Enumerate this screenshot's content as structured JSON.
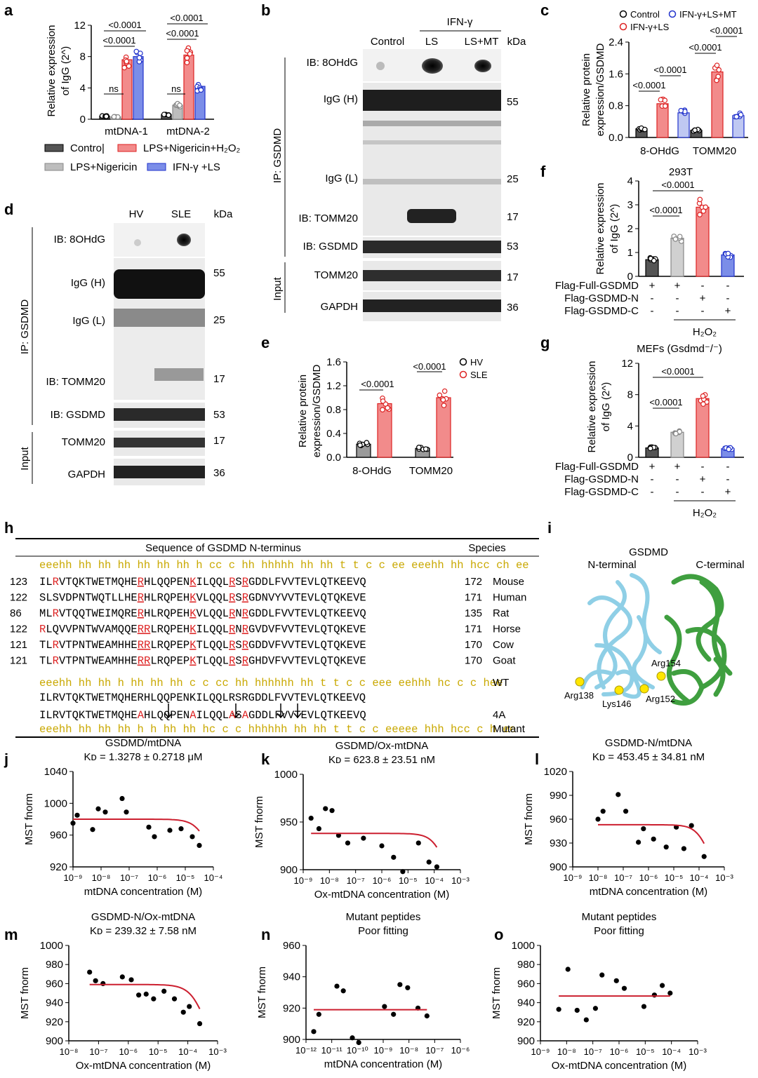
{
  "panels": {
    "a": {
      "letter": "a",
      "ylabel1": "Relative expression",
      "ylabel2": "of IgG (2^)",
      "groups": [
        "mtDNA-1",
        "mtDNA-2"
      ],
      "yticks": [
        "0",
        "4",
        "8",
        "12"
      ],
      "sig": [
        "ns",
        "<0.0001",
        "<0.0001",
        "ns",
        "<0.0001",
        "<0.0001"
      ],
      "legend": [
        "Contro|",
        "LPS+Nigericin",
        "LPS+Nigericin+H₂O₂",
        "IFN-γ +LS"
      ]
    },
    "b": {
      "letter": "b",
      "treat": "IFN-γ",
      "cols": [
        "Control",
        "LS",
        "LS+MT",
        "kDa"
      ],
      "rows": [
        "IB: 8OHdG",
        "IgG (H)",
        "IgG (L)",
        "IB: TOMM20",
        "IB: GSDMD",
        "TOMM20",
        "GAPDH"
      ],
      "kda": [
        "55",
        "25",
        "17",
        "53",
        "17",
        "36"
      ],
      "side1": "IP: GSDMD",
      "side2": "Input"
    },
    "c": {
      "letter": "c",
      "ylabel1": "Relative protein",
      "ylabel2": "expression/GSDMD",
      "groups": [
        "8-OHdG",
        "TOMM20"
      ],
      "yticks": [
        "0.0",
        "0.8",
        "1.6",
        "2.4"
      ],
      "sig": [
        "<0.0001",
        "<0.0001",
        "<0.0001",
        "<0.0001"
      ],
      "legend": [
        "Control",
        "IFN-γ+LS",
        "IFN-γ+LS+MT"
      ]
    },
    "d": {
      "letter": "d",
      "cols": [
        "HV",
        "SLE",
        "kDa"
      ],
      "rows": [
        "IB: 8OHdG",
        "IgG (H)",
        "IgG (L)",
        "IB: TOMM20",
        "IB: GSDMD",
        "TOMM20",
        "GAPDH"
      ],
      "kda": [
        "55",
        "25",
        "17",
        "53",
        "17",
        "36"
      ],
      "side1": "IP: GSDMD",
      "side2": "Input"
    },
    "e": {
      "letter": "e",
      "ylabel1": "Relative protein",
      "ylabel2": "expression/GSDMD",
      "groups": [
        "8-OHdG",
        "TOMM20"
      ],
      "yticks": [
        "0.0",
        "0.4",
        "0.8",
        "1.2",
        "1.6"
      ],
      "sig": [
        "<0.0001",
        "<0.0001"
      ],
      "legend": [
        "HV",
        "SLE"
      ]
    },
    "f": {
      "letter": "f",
      "title": "293T",
      "ylabel1": "Relative expression",
      "ylabel2": "of IgG (2^)",
      "yticks": [
        "0",
        "1",
        "2",
        "3",
        "4"
      ],
      "sig": [
        "<0.0001",
        "<0.0001"
      ],
      "rowlabels": [
        "Flag-Full-GSDMD",
        "Flag-GSDMD-N",
        "Flag-GSDMD-C"
      ],
      "signs": [
        [
          "+",
          "+",
          "-",
          "-"
        ],
        [
          "-",
          "-",
          "+",
          "-"
        ],
        [
          "-",
          "-",
          "-",
          "+"
        ]
      ],
      "h2o2": "H₂O₂"
    },
    "g": {
      "letter": "g",
      "title": "MEFs (Gsdmd⁻/⁻)",
      "ylabel1": "Relative expression",
      "ylabel2": "of IgG (2^)",
      "yticks": [
        "0",
        "4",
        "8",
        "12"
      ],
      "sig": [
        "<0.0001",
        "<0.0001"
      ],
      "rowlabels": [
        "Flag-Full-GSDMD",
        "Flag-GSDMD-N",
        "Flag-GSDMD-C"
      ],
      "signs": [
        [
          "+",
          "+",
          "-",
          "-"
        ],
        [
          "-",
          "-",
          "+",
          "-"
        ],
        [
          "-",
          "-",
          "-",
          "+"
        ]
      ],
      "h2o2": "H₂O₂"
    },
    "h": {
      "letter": "h",
      "header": "Sequence of GSDMD N-terminus",
      "species_header": "Species",
      "ss_top": "eeehh hh hh hh hh hh hh h cc c hh hhhhh hh hh  t t c c ee eeehh hh hcc ch ee",
      "rows": [
        {
          "start": "123",
          "seq": "ILRVTQKTWETMQHERHLQQPENKILQQLRSRGDDLFVVTEVLQTKEEVQ",
          "end": "172",
          "sp": "Mouse"
        },
        {
          "start": "122",
          "seq": "SLSVDPNTWQTLLHERHLRQPEHKVLQQLRSRGDNVYVVTEVLQTQKEVE",
          "end": "171",
          "sp": "Human"
        },
        {
          "start": "86",
          "seq": "MLRVTQQTWEIMQRERHLRQPEHKVLQQLRNRGDDLFVVTEVLQTKEEVQ",
          "end": "135",
          "sp": "Rat"
        },
        {
          "start": "122",
          "seq": "RLQVVPNTWVAMQQERRLRQPEHKILQQLRNRGVDVFVVTEVLQTQKEVE",
          "end": "171",
          "sp": "Horse"
        },
        {
          "start": "121",
          "seq": "TLRVTPNTWEAMHHERRLRQPEPKTLQQLRSRGDDVFVVTEVLQTQKEVE",
          "end": "170",
          "sp": "Cow"
        },
        {
          "start": "121",
          "seq": "TLRVTPNTWEAMHHERRLRQPEPKTLQQLRSRGHDVFVVTEVLQTQKEVE",
          "end": "170",
          "sp": "Goat"
        }
      ],
      "ss_wt": "eeehh hh hh h hh hh hh c c cc hh hhhhhh hh t t c c eee eehhh hc c c hee",
      "wt_label": "WT",
      "wt_seq": "ILRVTQKTWETMQHERHLQQPENKILQQLRSRGDDLFVVTEVLQTKEEVQ",
      "mut_seq": "ILRVTQKTWETMQHEAHLQQPENAILQQLASAGDDLFVVTEVLQTKEEVQ",
      "mut_label": "4A",
      "ss_mut": "eeehh hh hh hh h h hh hh hc c c hhhhhh hh hh t t c c eeeee hhh hcc c h ee",
      "mut_label2": "Mutant"
    },
    "i": {
      "letter": "i",
      "title": "GSDMD",
      "nterm": "N-terminal",
      "cterm": "C-terminal",
      "residues": [
        "Arg154",
        "Arg138",
        "Lys146",
        "Arg152"
      ]
    }
  },
  "chart_data": [
    {
      "panel": "j",
      "type": "scatter",
      "title": "GSDMD/mtDNA",
      "subtitle": "Kᴅ = 1.3278 ± 0.2718 μM",
      "xlabel": "mtDNA concentration (M)",
      "ylabel": "MST fnorm",
      "ylim": [
        920,
        1040
      ],
      "yticks": [
        920,
        960,
        1000,
        1040
      ],
      "xlim": [
        -9,
        -4
      ],
      "xticks": [
        "10⁻⁹",
        "10⁻⁸",
        "10⁻⁷",
        "10⁻⁶",
        "10⁻⁵",
        "10⁻⁴"
      ],
      "points": [
        [
          -9.0,
          975
        ],
        [
          -8.85,
          985
        ],
        [
          -8.3,
          967
        ],
        [
          -8.1,
          993
        ],
        [
          -7.85,
          989
        ],
        [
          -7.25,
          1006
        ],
        [
          -7.1,
          989
        ],
        [
          -6.3,
          970
        ],
        [
          -6.1,
          958
        ],
        [
          -5.55,
          966
        ],
        [
          -5.15,
          968
        ],
        [
          -4.75,
          958
        ],
        [
          -4.5,
          947
        ]
      ],
      "fit": {
        "top": 980,
        "bottom": 900,
        "logk": -4.1
      }
    },
    {
      "panel": "k",
      "type": "scatter",
      "title": "GSDMD/Ox-mtDNA",
      "subtitle": "Kᴅ = 623.8 ± 23.51 nM",
      "xlabel": "Ox-mtDNA concentration (M)",
      "ylabel": "MST fnorm",
      "ylim": [
        900,
        1000
      ],
      "yticks": [
        900,
        950,
        1000
      ],
      "xlim": [
        -9,
        -3
      ],
      "xticks": [
        "10⁻⁹",
        "10⁻⁸",
        "10⁻⁷",
        "10⁻⁶",
        "10⁻⁵",
        "10⁻⁴",
        "10⁻³"
      ],
      "points": [
        [
          -8.7,
          954
        ],
        [
          -8.4,
          943
        ],
        [
          -8.15,
          964
        ],
        [
          -7.9,
          962
        ],
        [
          -7.65,
          936
        ],
        [
          -7.3,
          928
        ],
        [
          -6.7,
          933
        ],
        [
          -6.0,
          925
        ],
        [
          -5.55,
          913
        ],
        [
          -5.2,
          898
        ],
        [
          -4.6,
          928
        ],
        [
          -4.2,
          908
        ],
        [
          -3.9,
          903
        ]
      ],
      "fit": {
        "top": 938,
        "bottom": 860,
        "logk": -3.5
      }
    },
    {
      "panel": "l",
      "type": "scatter",
      "title": "GSDMD-N/mtDNA",
      "subtitle": "Kᴅ = 453.45 ± 34.81 nM",
      "xlabel": "mtDNA concentration (M)",
      "ylabel": "MST fnorm",
      "ylim": [
        900,
        1020
      ],
      "yticks": [
        900,
        930,
        960,
        990,
        1020
      ],
      "xlim": [
        -9,
        -3
      ],
      "xticks": [
        "10⁻⁹",
        "10⁻⁸",
        "10⁻⁷",
        "10⁻⁶",
        "10⁻⁵",
        "10⁻⁴",
        "10⁻³"
      ],
      "points": [
        [
          -8.0,
          960
        ],
        [
          -7.8,
          970
        ],
        [
          -7.2,
          991
        ],
        [
          -6.9,
          970
        ],
        [
          -6.4,
          931
        ],
        [
          -6.2,
          948
        ],
        [
          -5.8,
          935
        ],
        [
          -5.3,
          925
        ],
        [
          -4.9,
          950
        ],
        [
          -4.6,
          923
        ],
        [
          -4.3,
          952
        ],
        [
          -3.8,
          913
        ]
      ],
      "fit": {
        "top": 953,
        "bottom": 880,
        "logk": -3.6
      }
    },
    {
      "panel": "m",
      "type": "scatter",
      "title": "GSDMD-N/Ox-mtDNA",
      "subtitle": "Kᴅ = 239.32 ± 7.58 nM",
      "xlabel": "Ox-mtDNA concentration (M)",
      "ylabel": "MST fnorm",
      "ylim": [
        900,
        1000
      ],
      "yticks": [
        900,
        920,
        940,
        960,
        980,
        1000
      ],
      "xlim": [
        -8,
        -3
      ],
      "xticks": [
        "10⁻⁸",
        "10⁻⁷",
        "10⁻⁶",
        "10⁻⁵",
        "10⁻⁴",
        "10⁻³"
      ],
      "points": [
        [
          -7.3,
          972
        ],
        [
          -7.1,
          963
        ],
        [
          -6.85,
          960
        ],
        [
          -6.2,
          967
        ],
        [
          -5.9,
          964
        ],
        [
          -5.65,
          948
        ],
        [
          -5.4,
          949
        ],
        [
          -5.15,
          944
        ],
        [
          -4.8,
          952
        ],
        [
          -4.45,
          944
        ],
        [
          -4.15,
          930
        ],
        [
          -3.95,
          936
        ],
        [
          -3.6,
          918
        ]
      ],
      "fit": {
        "top": 959,
        "bottom": 880,
        "logk": -3.4
      }
    },
    {
      "panel": "n",
      "type": "scatter",
      "title": "Mutant peptides",
      "subtitle": "Poor fitting",
      "xlabel": "mtDNA concentration (M)",
      "ylabel": "MST fnorm",
      "ylim": [
        900,
        960
      ],
      "yticks": [
        900,
        920,
        940,
        960
      ],
      "xlim": [
        -12,
        -6
      ],
      "xticks": [
        "10⁻¹²",
        "10⁻¹¹",
        "10⁻¹⁰",
        "10⁻⁹",
        "10⁻⁸",
        "10⁻⁷",
        "10⁻⁶"
      ],
      "points": [
        [
          -11.7,
          905
        ],
        [
          -11.5,
          916
        ],
        [
          -10.8,
          934
        ],
        [
          -10.55,
          931
        ],
        [
          -10.2,
          901
        ],
        [
          -9.95,
          898
        ],
        [
          -8.95,
          921
        ],
        [
          -8.6,
          916
        ],
        [
          -8.35,
          935
        ],
        [
          -8.05,
          933
        ],
        [
          -7.65,
          920
        ],
        [
          -7.3,
          915
        ]
      ],
      "fit": {
        "top": 919,
        "bottom": 919,
        "logk": -5
      }
    },
    {
      "panel": "o",
      "type": "scatter",
      "title": "Mutant peptides",
      "subtitle": "Poor fitting",
      "xlabel": "Ox-mtDNA concentration (M)",
      "ylabel": "MST fnorm",
      "ylim": [
        900,
        1000
      ],
      "yticks": [
        900,
        920,
        940,
        960,
        980,
        1000
      ],
      "xlim": [
        -9,
        -3
      ],
      "xticks": [
        "10⁻⁹",
        "10⁻⁸",
        "10⁻⁷",
        "10⁻⁶",
        "10⁻⁵",
        "10⁻⁴",
        "10⁻³"
      ],
      "points": [
        [
          -8.3,
          933
        ],
        [
          -7.95,
          975
        ],
        [
          -7.6,
          932
        ],
        [
          -7.25,
          922
        ],
        [
          -6.9,
          934
        ],
        [
          -6.65,
          969
        ],
        [
          -6.1,
          963
        ],
        [
          -5.8,
          955
        ],
        [
          -5.05,
          936
        ],
        [
          -4.65,
          948
        ],
        [
          -4.35,
          958
        ],
        [
          -4.05,
          950
        ]
      ],
      "fit": {
        "top": 947,
        "bottom": 947,
        "logk": -2
      }
    },
    {
      "panel": "a",
      "type": "bar",
      "categories": [
        "mtDNA-1",
        "mtDNA-2"
      ],
      "series": [
        {
          "name": "Contro|",
          "values": [
            0.4,
            0.6
          ]
        },
        {
          "name": "LPS+Nigericin",
          "values": [
            0.3,
            1.8
          ]
        },
        {
          "name": "LPS+Nigericin+H₂O₂",
          "values": [
            7.6,
            8.2
          ]
        },
        {
          "name": "IFN-γ +LS",
          "values": [
            8.0,
            4.2
          ]
        }
      ],
      "ylim": [
        0,
        12
      ]
    },
    {
      "panel": "c",
      "type": "bar",
      "categories": [
        "8-OHdG",
        "TOMM20"
      ],
      "series": [
        {
          "name": "Control",
          "values": [
            0.22,
            0.18
          ]
        },
        {
          "name": "IFN-γ+LS",
          "values": [
            0.85,
            1.65
          ]
        },
        {
          "name": "IFN-γ+LS+MT",
          "values": [
            0.62,
            0.55
          ]
        }
      ],
      "ylim": [
        0,
        2.4
      ]
    },
    {
      "panel": "e",
      "type": "bar",
      "categories": [
        "8-OHdG",
        "TOMM20"
      ],
      "series": [
        {
          "name": "HV",
          "values": [
            0.22,
            0.15
          ]
        },
        {
          "name": "SLE",
          "values": [
            0.9,
            1.0
          ]
        }
      ],
      "ylim": [
        0,
        1.6
      ]
    },
    {
      "panel": "f",
      "type": "bar",
      "categories": [
        "1",
        "2",
        "3",
        "4"
      ],
      "series": [
        {
          "name": "",
          "values": [
            0.7,
            1.6,
            2.9,
            0.9
          ]
        }
      ],
      "ylim": [
        0,
        4
      ]
    },
    {
      "panel": "g",
      "type": "bar",
      "categories": [
        "1",
        "2",
        "3",
        "4"
      ],
      "series": [
        {
          "name": "",
          "values": [
            1.2,
            3.2,
            7.5,
            1.1
          ]
        }
      ],
      "ylim": [
        0,
        12
      ]
    }
  ]
}
